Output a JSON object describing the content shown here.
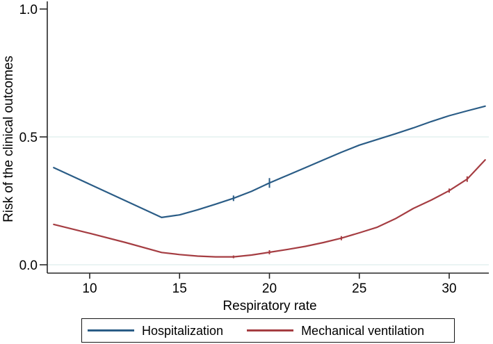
{
  "figure": {
    "background": "#ffffff",
    "axis_color": "#262626",
    "grid_color": "#e4f1ef",
    "text_color": "#000000"
  },
  "chart_data": {
    "type": "line",
    "title": "",
    "xlabel": "Respiratory rate",
    "ylabel": "Risk of the clinical outcomes",
    "xlim": [
      7.6,
      32.2
    ],
    "ylim": [
      0,
      1.03
    ],
    "x_ticks": [
      10,
      15,
      20,
      25,
      30
    ],
    "y_ticks": [
      0,
      0.5,
      1
    ],
    "y_tick_labels": [
      "0.0",
      "0.5",
      "1.0"
    ],
    "grid_y": [
      0,
      0.5
    ],
    "grid": "horizontal gridlines at 0.0 and 0.5 only",
    "legend_position": "bottom-outside, boxed",
    "series": [
      {
        "name": "Hospitalization",
        "color": "#2a5c86",
        "x": [
          8,
          10,
          12,
          14,
          15,
          16,
          17,
          18,
          19,
          20,
          21,
          22,
          23,
          24,
          25,
          26,
          27,
          28,
          29,
          30,
          31,
          32
        ],
        "y": [
          0.38,
          0.315,
          0.25,
          0.185,
          0.195,
          0.215,
          0.237,
          0.26,
          0.287,
          0.32,
          0.35,
          0.38,
          0.41,
          0.44,
          0.468,
          0.49,
          0.512,
          0.535,
          0.56,
          0.583,
          0.602,
          0.62
        ],
        "ci_caps": [
          {
            "x": 18,
            "half": 4
          },
          {
            "x": 20,
            "half": 7
          }
        ]
      },
      {
        "name": "Mechanical ventilation",
        "color": "#a53d42",
        "x": [
          8,
          10,
          12,
          14,
          15,
          16,
          17,
          18,
          19,
          20,
          21,
          22,
          23,
          24,
          25,
          26,
          27,
          28,
          29,
          30,
          31,
          32
        ],
        "y": [
          0.158,
          0.123,
          0.087,
          0.048,
          0.04,
          0.034,
          0.031,
          0.031,
          0.038,
          0.049,
          0.06,
          0.072,
          0.087,
          0.104,
          0.125,
          0.147,
          0.18,
          0.22,
          0.253,
          0.29,
          0.335,
          0.41
        ],
        "ci_caps": [
          {
            "x": 18,
            "half": 2
          },
          {
            "x": 20,
            "half": 3
          },
          {
            "x": 24,
            "half": 3
          },
          {
            "x": 30,
            "half": 3
          },
          {
            "x": 31,
            "half": 4
          }
        ]
      }
    ]
  },
  "legend": {
    "items": [
      {
        "label": "Hospitalization"
      },
      {
        "label": "Mechanical ventilation"
      }
    ]
  }
}
